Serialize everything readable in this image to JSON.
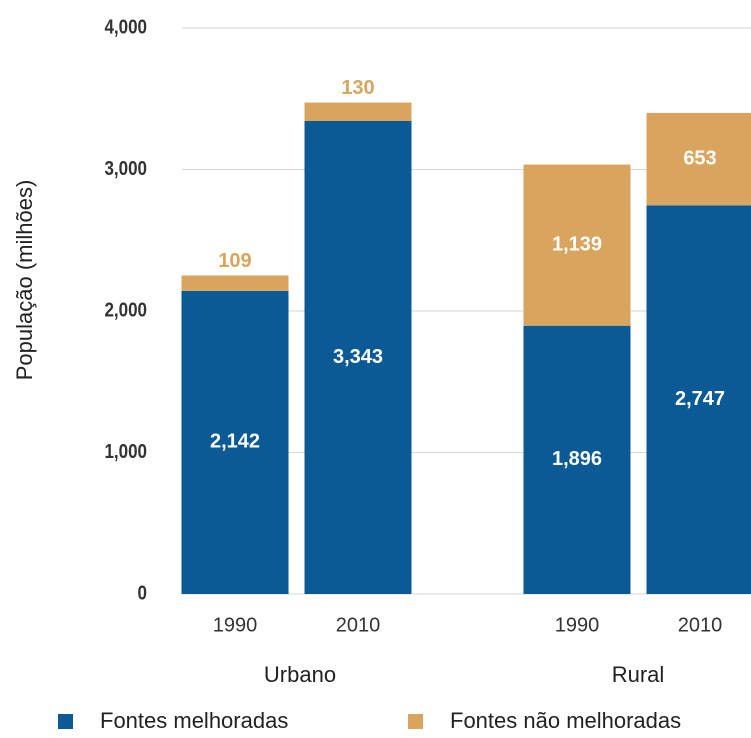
{
  "chart_data": {
    "type": "stacked-bar",
    "y_label": "População (milhões)",
    "categories": [
      "1990",
      "2010",
      "1990",
      "2010"
    ],
    "groups": [
      "Urbano",
      "Rural"
    ],
    "series": [
      {
        "name": "Fontes melhoradas",
        "color": "#0b5a96",
        "values": [
          2142,
          3343,
          1896,
          2747
        ],
        "value_labels": [
          "2,142",
          "3,343",
          "1,896",
          "2,747"
        ]
      },
      {
        "name": "Fontes não melhoradas",
        "color": "#d9a45e",
        "values": [
          109,
          130,
          1139,
          653
        ],
        "value_labels": [
          "109",
          "130",
          "1,139",
          "653"
        ]
      }
    ],
    "ylim": [
      0,
      4000
    ],
    "yticks": [
      0,
      {
        "value": 1000,
        "label": "1,000"
      },
      {
        "value": 2000,
        "label": "2,000"
      },
      {
        "value": 3000,
        "label": "3,000"
      },
      {
        "value": 4000,
        "label": "4,000"
      }
    ],
    "grid": true,
    "legend": "bottom"
  }
}
